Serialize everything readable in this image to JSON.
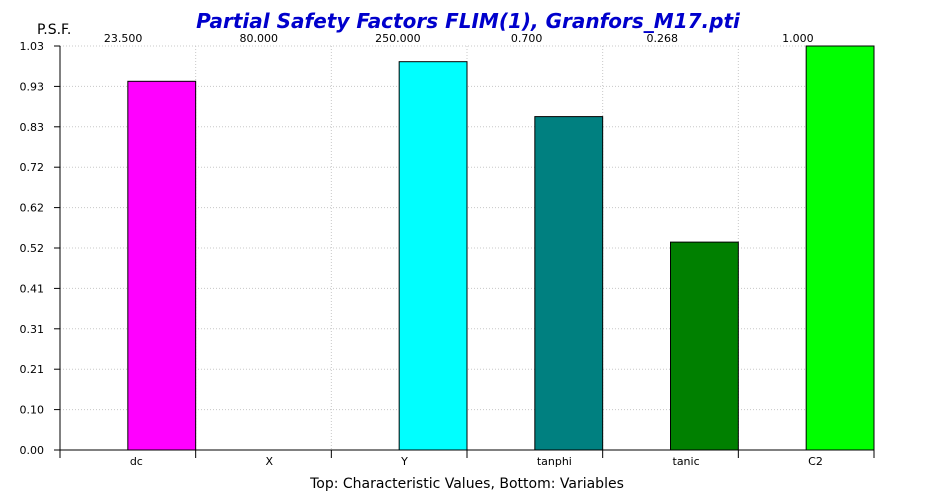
{
  "chart_data": {
    "type": "bar",
    "title": "Partial Safety Factors FLIM(1), Granfors_M17.pti",
    "ylabel": "P.S.F.",
    "xlabel": "Top: Characteristic Values, Bottom: Variables",
    "categories": [
      "dc",
      "X",
      "Y",
      "tanphi",
      "tanic",
      "C2"
    ],
    "top_labels": [
      "23.500",
      "80.000",
      "250.000",
      "0.700",
      "0.268",
      "1.000"
    ],
    "values": [
      0.94,
      0.0,
      0.99,
      0.85,
      0.53,
      1.03
    ],
    "colors": [
      "#ff00ff",
      "#ffffff",
      "#00ffff",
      "#008080",
      "#008000",
      "#00ff00"
    ],
    "ylim": [
      0.0,
      1.03
    ],
    "yticks": [
      "0.00",
      "0.10",
      "0.21",
      "0.31",
      "0.41",
      "0.52",
      "0.62",
      "0.72",
      "0.83",
      "0.93",
      "1.03"
    ],
    "grid": true,
    "legend": "none"
  }
}
